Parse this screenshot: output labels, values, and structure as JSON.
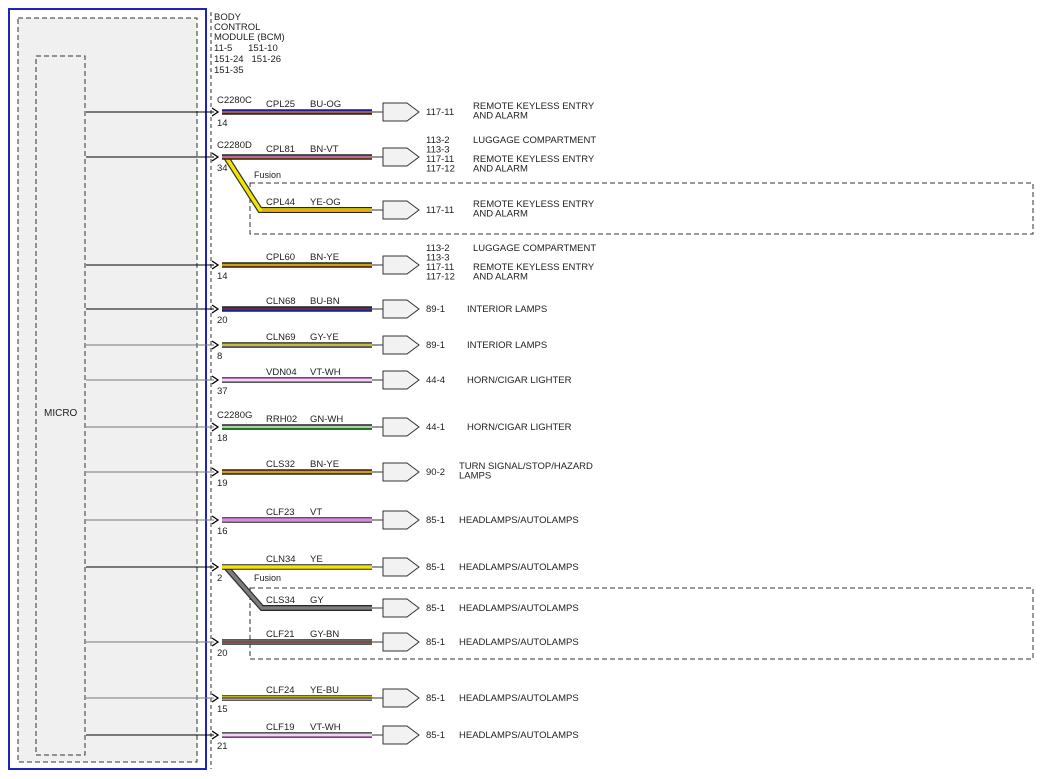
{
  "module": {
    "title_lines": [
      "BODY",
      "CONTROL",
      "MODULE (BCM)"
    ],
    "ref_lines": [
      "11-5      151-10",
      "151-24   151-26",
      "151-35"
    ],
    "micro_label": "MICRO"
  },
  "fusion_label": "Fusion",
  "colors": {
    "BU": "#1f1fb0",
    "OG": "#e58a1e",
    "BN": "#7a3b1b",
    "VT": "#d98be0",
    "YE": "#f2e600",
    "GY": "#7d7d7d",
    "GN": "#1d8a1d",
    "WH": "#ffffff",
    "module_border": "#1f23b8"
  },
  "circuits": [
    {
      "connector": "C2280C",
      "pin": "14",
      "circuit": "CPL25",
      "wire": "BU-OG",
      "base": "BU",
      "stripe": "OG",
      "refs": [
        "117-11"
      ],
      "labels": [
        "REMOTE KEYLESS ENTRY",
        "AND ALARM"
      ]
    },
    {
      "connector": "C2280D",
      "pin": "34",
      "circuit": "CPL81",
      "wire": "BN-VT",
      "base": "BN",
      "stripe": "VT",
      "refs": [
        "113-2",
        "113-3",
        "117-11",
        "117-12"
      ],
      "labels": [
        "LUGGAGE COMPARTMENT",
        "",
        "REMOTE KEYLESS ENTRY",
        "AND ALARM"
      ]
    },
    {
      "connector": "",
      "pin": "",
      "circuit": "CPL44",
      "wire": "YE-OG",
      "base": "YE",
      "stripe": "OG",
      "refs": [
        "117-11"
      ],
      "labels": [
        "REMOTE KEYLESS ENTRY",
        "AND ALARM"
      ]
    },
    {
      "connector": "",
      "pin": "14",
      "circuit": "CPL60",
      "wire": "BN-YE",
      "base": "BN",
      "stripe": "YE",
      "refs": [
        "113-2",
        "113-3",
        "117-11",
        "117-12"
      ],
      "labels": [
        "LUGGAGE COMPARTMENT",
        "",
        "REMOTE KEYLESS ENTRY",
        "AND ALARM"
      ]
    },
    {
      "connector": "",
      "pin": "20",
      "circuit": "CLN68",
      "wire": "BU-BN",
      "base": "BU",
      "stripe": "BN",
      "refs": [
        "89-1"
      ],
      "labels": [
        "INTERIOR LAMPS"
      ]
    },
    {
      "connector": "",
      "pin": "8",
      "circuit": "CLN69",
      "wire": "GY-YE",
      "base": "GY",
      "stripe": "YE",
      "refs": [
        "89-1"
      ],
      "labels": [
        "INTERIOR LAMPS"
      ]
    },
    {
      "connector": "",
      "pin": "37",
      "circuit": "VDN04",
      "wire": "VT-WH",
      "base": "VT",
      "stripe": "WH",
      "refs": [
        "44-4"
      ],
      "labels": [
        "HORN/CIGAR LIGHTER"
      ]
    },
    {
      "connector": "C2280G",
      "pin": "18",
      "circuit": "RRH02",
      "wire": "GN-WH",
      "base": "GN",
      "stripe": "WH",
      "refs": [
        "44-1"
      ],
      "labels": [
        "HORN/CIGAR LIGHTER"
      ]
    },
    {
      "connector": "",
      "pin": "19",
      "circuit": "CLS32",
      "wire": "BN-YE",
      "base": "BN",
      "stripe": "YE",
      "refs": [
        "90-2"
      ],
      "labels": [
        "TURN SIGNAL/STOP/HAZARD",
        "LAMPS"
      ]
    },
    {
      "connector": "",
      "pin": "16",
      "circuit": "CLF23",
      "wire": "VT",
      "base": "VT",
      "stripe": "",
      "refs": [
        "85-1"
      ],
      "labels": [
        "HEADLAMPS/AUTOLAMPS"
      ]
    },
    {
      "connector": "",
      "pin": "2",
      "circuit": "CLN34",
      "wire": "YE",
      "base": "YE",
      "stripe": "",
      "refs": [
        "85-1"
      ],
      "labels": [
        "HEADLAMPS/AUTOLAMPS"
      ]
    },
    {
      "connector": "",
      "pin": "",
      "circuit": "CLS34",
      "wire": "GY",
      "base": "GY",
      "stripe": "",
      "refs": [
        "85-1"
      ],
      "labels": [
        "HEADLAMPS/AUTOLAMPS"
      ]
    },
    {
      "connector": "",
      "pin": "20",
      "circuit": "CLF21",
      "wire": "GY-BN",
      "base": "GY",
      "stripe": "BN",
      "refs": [
        "85-1"
      ],
      "labels": [
        "HEADLAMPS/AUTOLAMPS"
      ]
    },
    {
      "connector": "",
      "pin": "15",
      "circuit": "CLF24",
      "wire": "YE-BU",
      "base": "YE",
      "stripe": "BU",
      "refs": [
        "85-1"
      ],
      "labels": [
        "HEADLAMPS/AUTOLAMPS"
      ]
    },
    {
      "connector": "",
      "pin": "21",
      "circuit": "CLF19",
      "wire": "VT-WH",
      "base": "VT",
      "stripe": "WH",
      "refs": [
        "85-1"
      ],
      "labels": [
        "HEADLAMPS/AUTOLAMPS"
      ]
    }
  ]
}
